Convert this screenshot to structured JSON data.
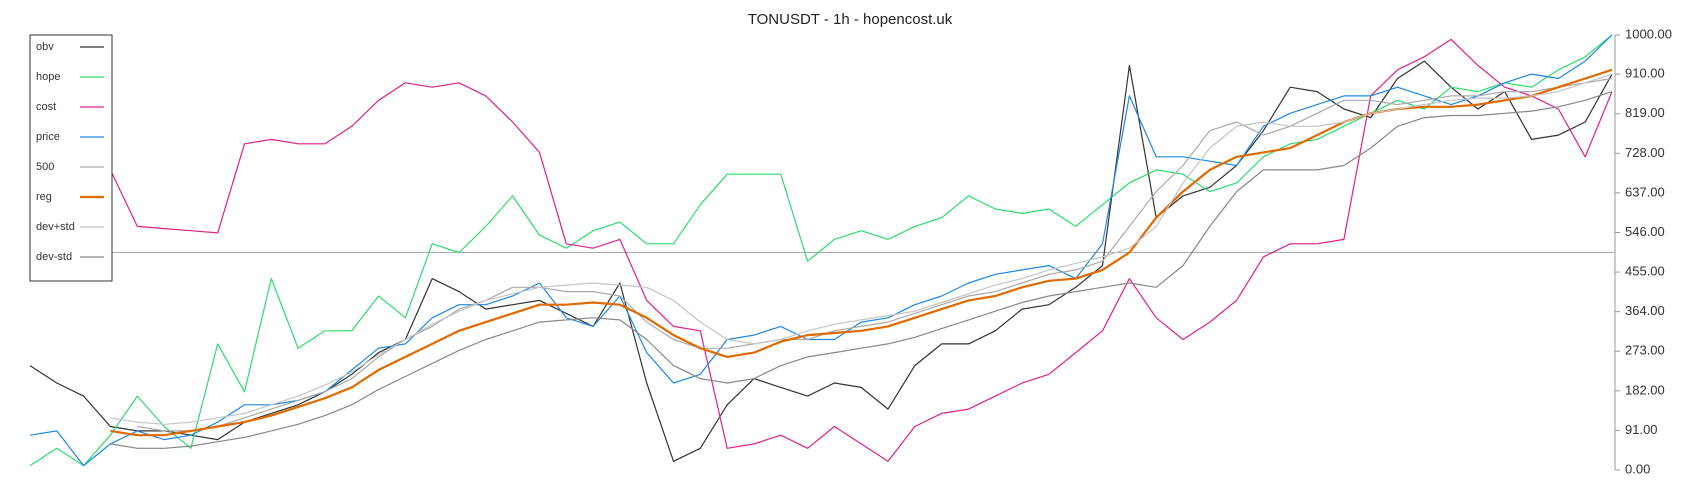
{
  "chart_data": {
    "type": "line",
    "title": "TONUSDT - 1h - hopencost.uk",
    "ylim": [
      0,
      1000
    ],
    "yticks": [
      {
        "value": 0,
        "label": "0.00"
      },
      {
        "value": 91,
        "label": "91.00"
      },
      {
        "value": 182,
        "label": "182.00"
      },
      {
        "value": 273,
        "label": "273.00"
      },
      {
        "value": 364,
        "label": "364.00"
      },
      {
        "value": 455,
        "label": "455.00"
      },
      {
        "value": 546,
        "label": "546.00"
      },
      {
        "value": 637,
        "label": "637.00"
      },
      {
        "value": 728,
        "label": "728.00"
      },
      {
        "value": 819,
        "label": "819.00"
      },
      {
        "value": 910,
        "label": "910.00"
      },
      {
        "value": 1000,
        "label": "1000.00"
      }
    ],
    "hline": 500,
    "legend": "top-left",
    "series": [
      {
        "name": "obv",
        "color": "#333333",
        "width": 1.2,
        "values": [
          240,
          200,
          170,
          100,
          90,
          90,
          80,
          70,
          110,
          130,
          150,
          180,
          220,
          270,
          300,
          440,
          410,
          370,
          380,
          390,
          360,
          330,
          430,
          200,
          20,
          50,
          150,
          210,
          190,
          170,
          200,
          190,
          140,
          240,
          290,
          290,
          320,
          370,
          380,
          420,
          470,
          930,
          580,
          630,
          650,
          700,
          780,
          880,
          870,
          830,
          810,
          900,
          940,
          880,
          830,
          870,
          760,
          770,
          800,
          910
        ]
      },
      {
        "name": "hope",
        "color": "#2edb6e",
        "width": 1.2,
        "values": [
          10,
          50,
          10,
          80,
          170,
          100,
          50,
          290,
          180,
          440,
          280,
          320,
          320,
          400,
          350,
          520,
          500,
          560,
          630,
          540,
          510,
          550,
          570,
          520,
          520,
          610,
          680,
          680,
          680,
          480,
          530,
          550,
          530,
          560,
          580,
          630,
          600,
          590,
          600,
          560,
          610,
          660,
          690,
          680,
          640,
          660,
          720,
          750,
          760,
          790,
          820,
          850,
          830,
          880,
          870,
          890,
          880,
          920,
          950,
          1000
        ]
      },
      {
        "name": "cost",
        "color": "#e0218a",
        "width": 1.2,
        "values": [
          null,
          null,
          null,
          690,
          560,
          555,
          550,
          545,
          750,
          760,
          750,
          750,
          790,
          850,
          890,
          880,
          890,
          860,
          800,
          730,
          520,
          510,
          530,
          390,
          330,
          320,
          50,
          60,
          80,
          50,
          100,
          60,
          20,
          100,
          130,
          140,
          170,
          200,
          220,
          270,
          320,
          440,
          350,
          300,
          340,
          390,
          490,
          520,
          520,
          530,
          860,
          920,
          950,
          990,
          930,
          880,
          860,
          830,
          720,
          870
        ]
      },
      {
        "name": "price",
        "color": "#1e88e5",
        "width": 1.2,
        "values": [
          80,
          90,
          10,
          60,
          90,
          70,
          80,
          110,
          150,
          150,
          160,
          180,
          230,
          280,
          290,
          350,
          380,
          380,
          400,
          430,
          350,
          330,
          400,
          270,
          200,
          220,
          300,
          310,
          330,
          300,
          300,
          340,
          350,
          380,
          400,
          430,
          450,
          460,
          470,
          440,
          520,
          860,
          720,
          720,
          710,
          700,
          790,
          820,
          840,
          860,
          860,
          880,
          860,
          840,
          860,
          890,
          910,
          900,
          940,
          1000
        ]
      },
      {
        "name": "500",
        "color": "#aaaaaa",
        "width": 1.2,
        "values": [
          null,
          null,
          null,
          null,
          100,
          90,
          90,
          100,
          120,
          140,
          160,
          180,
          210,
          260,
          300,
          330,
          370,
          390,
          420,
          420,
          410,
          410,
          400,
          340,
          300,
          280,
          280,
          290,
          300,
          300,
          320,
          330,
          340,
          360,
          380,
          400,
          410,
          430,
          450,
          460,
          480,
          560,
          640,
          700,
          780,
          800,
          770,
          790,
          820,
          850,
          850,
          840,
          850,
          860,
          860,
          870,
          870,
          880,
          890,
          900
        ]
      },
      {
        "name": "reg",
        "color": "#e06a00",
        "width": 2.2,
        "values": [
          null,
          null,
          null,
          90,
          80,
          80,
          90,
          100,
          110,
          125,
          145,
          165,
          190,
          230,
          260,
          290,
          320,
          340,
          360,
          380,
          380,
          385,
          380,
          350,
          310,
          280,
          260,
          270,
          295,
          310,
          315,
          320,
          330,
          350,
          370,
          390,
          400,
          420,
          435,
          440,
          460,
          500,
          580,
          640,
          690,
          720,
          730,
          740,
          770,
          800,
          820,
          830,
          835,
          835,
          840,
          850,
          860,
          880,
          900,
          920
        ]
      },
      {
        "name": "dev+std",
        "color": "#c4c4c4",
        "width": 1.2,
        "values": [
          null,
          null,
          null,
          120,
          110,
          105,
          110,
          120,
          130,
          150,
          170,
          195,
          225,
          265,
          300,
          335,
          365,
          390,
          405,
          420,
          425,
          430,
          425,
          420,
          390,
          340,
          300,
          290,
          300,
          320,
          335,
          345,
          355,
          365,
          385,
          405,
          425,
          440,
          460,
          475,
          490,
          510,
          560,
          660,
          740,
          790,
          800,
          790,
          790,
          800,
          820,
          830,
          840,
          850,
          855,
          855,
          860,
          870,
          890,
          910
        ]
      },
      {
        "name": "dev-std",
        "color": "#888888",
        "width": 1.2,
        "values": [
          null,
          null,
          null,
          60,
          50,
          50,
          55,
          65,
          75,
          90,
          105,
          125,
          150,
          185,
          215,
          245,
          275,
          300,
          320,
          340,
          345,
          350,
          345,
          300,
          240,
          210,
          200,
          210,
          240,
          260,
          270,
          280,
          290,
          305,
          325,
          345,
          365,
          385,
          400,
          410,
          420,
          430,
          420,
          470,
          560,
          640,
          690,
          690,
          690,
          700,
          740,
          790,
          810,
          815,
          815,
          820,
          825,
          835,
          850,
          870
        ]
      }
    ]
  }
}
